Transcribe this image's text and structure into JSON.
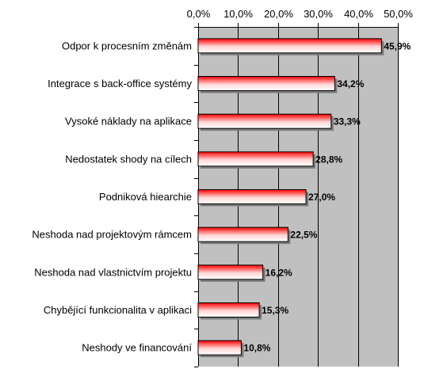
{
  "chart_data": {
    "type": "bar",
    "orientation": "horizontal",
    "categories": [
      "Odpor k procesním změnám",
      "Integrace s back-office systémy",
      "Vysoké náklady na aplikace",
      "Nedostatek shody na cílech",
      "Podniková hiearchie",
      "Neshoda nad projektovým rámcem",
      "Neshoda nad vlastnictvím projektu",
      "Chybějící funkcionalita v aplikaci",
      "Neshody ve financování"
    ],
    "values": [
      45.9,
      34.2,
      33.3,
      28.8,
      27.0,
      22.5,
      16.2,
      15.3,
      10.8
    ],
    "data_labels": [
      "45,9%",
      "34,2%",
      "33,3%",
      "28,8%",
      "27,0%",
      "22,5%",
      "16,2%",
      "15,3%",
      "10,8%"
    ],
    "x_ticks": [
      0,
      10,
      20,
      30,
      40,
      50
    ],
    "x_tick_labels": [
      "0,0%",
      "10,0%",
      "20,0%",
      "30,0%",
      "40,0%",
      "50,0%"
    ],
    "xlim": [
      0,
      50
    ],
    "x_axis_position": "top",
    "grid": true,
    "colors": {
      "plot_background": "#c0c0c0",
      "bar_edge": "#000000",
      "bar_gradient_top": "#ff0000",
      "bar_gradient_bottom": "#ffffff",
      "gridline": "#000000"
    },
    "title": "",
    "xlabel": "",
    "ylabel": ""
  }
}
